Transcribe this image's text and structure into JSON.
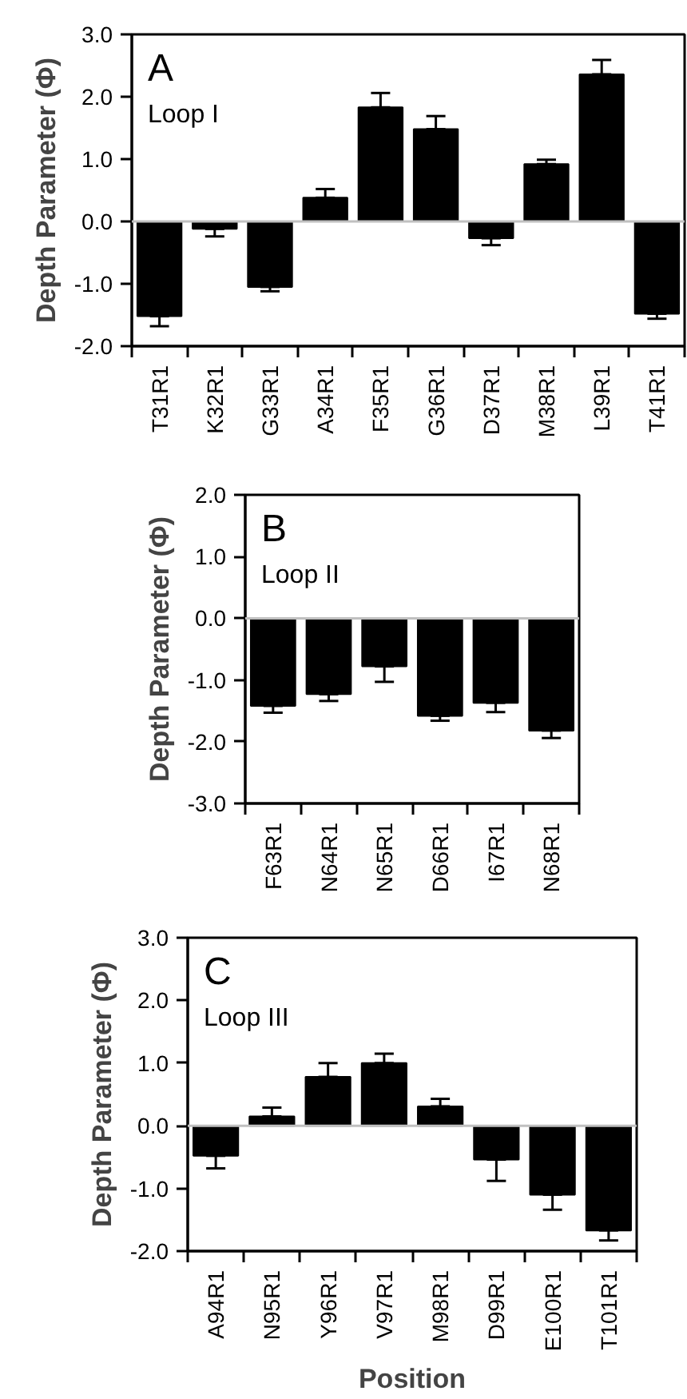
{
  "chart_data": [
    {
      "type": "bar",
      "ylabel": "Depth Parameter (Φ)",
      "annotations": [
        "A",
        "Loop I"
      ],
      "categories": [
        "T31R1",
        "K32R1",
        "G33R1",
        "A34R1",
        "F35R1",
        "G36R1",
        "D37R1",
        "M38R1",
        "L39R1",
        "T41R1"
      ],
      "values": [
        -1.52,
        -0.12,
        -1.05,
        0.38,
        1.83,
        1.48,
        -0.27,
        0.92,
        2.36,
        -1.48
      ],
      "color": "#000000",
      "errors": [
        [
          -1.68,
          -1.52
        ],
        [
          -0.24,
          -0.12
        ],
        [
          -1.12,
          -1.05
        ],
        [
          0.38,
          0.52
        ],
        [
          1.83,
          2.06
        ],
        [
          1.48,
          1.69
        ],
        [
          -0.38,
          -0.27
        ],
        [
          0.92,
          0.99
        ],
        [
          2.36,
          2.59
        ],
        [
          -1.56,
          -1.48
        ]
      ],
      "ylim": [
        -2,
        3
      ],
      "yticks": [
        {
          "value": -2,
          "label": "-2.0"
        },
        {
          "value": -1,
          "label": "-1.0"
        },
        {
          "value": 0,
          "label": "0.0"
        },
        {
          "value": 1,
          "label": "1.0"
        },
        {
          "value": 2,
          "label": "2.0"
        },
        {
          "value": 3,
          "label": "3.0"
        }
      ],
      "ref_lines": [
        {
          "axis": "y",
          "value": 0,
          "color": "#c0c0c0"
        }
      ],
      "grid": false
    },
    {
      "type": "bar",
      "ylabel": "Depth Parameter (Φ)",
      "annotations": [
        "B",
        "Loop II"
      ],
      "categories": [
        "F63R1",
        "N64R1",
        "N65R1",
        "D66R1",
        "I67R1",
        "N68R1"
      ],
      "values": [
        -1.42,
        -1.23,
        -0.78,
        -1.58,
        -1.37,
        -1.82
      ],
      "color": "#000000",
      "errors": [
        [
          -1.53,
          -1.42
        ],
        [
          -1.34,
          -1.23
        ],
        [
          -1.03,
          -0.78
        ],
        [
          -1.66,
          -1.58
        ],
        [
          -1.52,
          -1.37
        ],
        [
          -1.94,
          -1.82
        ]
      ],
      "ylim": [
        -3,
        2
      ],
      "yticks": [
        {
          "value": -3,
          "label": "-3.0"
        },
        {
          "value": -2,
          "label": "-2.0"
        },
        {
          "value": -1,
          "label": "-1.0"
        },
        {
          "value": 0,
          "label": "0.0"
        },
        {
          "value": 1,
          "label": "1.0"
        },
        {
          "value": 2,
          "label": "2.0"
        }
      ],
      "ref_lines": [
        {
          "axis": "y",
          "value": 0,
          "color": "#c0c0c0"
        }
      ],
      "grid": false
    },
    {
      "type": "bar",
      "xlabel": "Position",
      "ylabel": "Depth Parameter (Φ)",
      "annotations": [
        "C",
        "Loop III"
      ],
      "categories": [
        "A94R1",
        "N95R1",
        "Y96R1",
        "V97R1",
        "M98R1",
        "D99R1",
        "E100R1",
        "T101R1"
      ],
      "values": [
        -0.48,
        0.15,
        0.78,
        1.0,
        0.31,
        -0.54,
        -1.1,
        -1.67
      ],
      "color": "#000000",
      "errors": [
        [
          -0.68,
          -0.48
        ],
        [
          0.15,
          0.29
        ],
        [
          0.78,
          1.0
        ],
        [
          1.0,
          1.15
        ],
        [
          0.31,
          0.43
        ],
        [
          -0.88,
          -0.54
        ],
        [
          -1.34,
          -1.1
        ],
        [
          -1.83,
          -1.67
        ]
      ],
      "ylim": [
        -2,
        3
      ],
      "yticks": [
        {
          "value": -2,
          "label": "-2.0"
        },
        {
          "value": -1,
          "label": "-1.0"
        },
        {
          "value": 0,
          "label": "0.0"
        },
        {
          "value": 1,
          "label": "1.0"
        },
        {
          "value": 2,
          "label": "2.0"
        },
        {
          "value": 3,
          "label": "3.0"
        }
      ],
      "ref_lines": [
        {
          "axis": "y",
          "value": 0,
          "color": "#c0c0c0"
        }
      ],
      "grid": false
    }
  ]
}
